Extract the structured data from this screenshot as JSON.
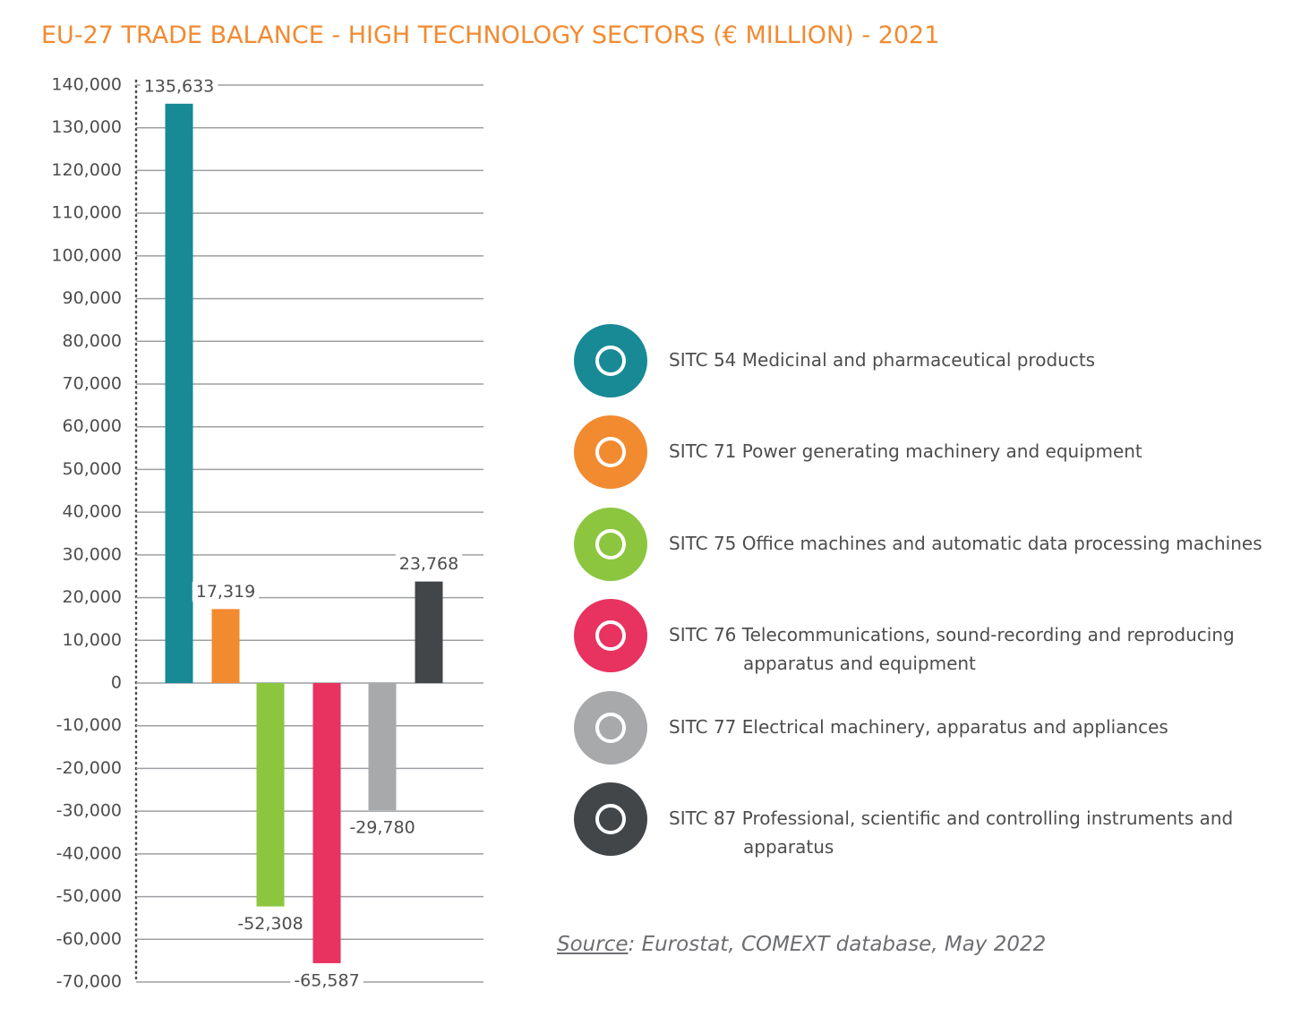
{
  "chart_data": {
    "type": "bar",
    "title": "EU-27 TRADE BALANCE - HIGH TECHNOLOGY SECTORS (€ MILLION) - 2021",
    "categories": [
      "SITC 54 Medicinal and pharmaceutical products",
      "SITC 71 Power generating machinery and equipment",
      "SITC 75 Office machines and automatic data processing machines",
      "SITC 76 Telecommunications, sound-recording and reproducing apparatus and equipment",
      "SITC 77 Electrical machinery, apparatus and appliances",
      "SITC 87 Professional, scientific and controlling instruments and apparatus"
    ],
    "values": [
      135633,
      17319,
      -52308,
      -65587,
      -29780,
      23768
    ],
    "value_labels": [
      "135,633",
      "17,319",
      "-52,308",
      "-65,587",
      "-29,780",
      "23,768"
    ],
    "colors": [
      "#178a96",
      "#f28a30",
      "#8cc63f",
      "#e8325f",
      "#a7a9ab",
      "#434649"
    ],
    "ylim": [
      -70000,
      140000
    ],
    "yticks": [
      {
        "value": -70000,
        "label": "-70,000"
      },
      {
        "value": -60000,
        "label": "-60,000"
      },
      {
        "value": -50000,
        "label": "-50,000"
      },
      {
        "value": -40000,
        "label": "-40,000"
      },
      {
        "value": -30000,
        "label": "-30,000"
      },
      {
        "value": -20000,
        "label": "-20,000"
      },
      {
        "value": -10000,
        "label": "-10,000"
      },
      0,
      {
        "value": 10000,
        "label": "10,000"
      },
      {
        "value": 20000,
        "label": "20,000"
      },
      {
        "value": 30000,
        "label": "30,000"
      },
      {
        "value": 40000,
        "label": "40,000"
      },
      {
        "value": 50000,
        "label": "50,000"
      },
      {
        "value": 60000,
        "label": "60,000"
      },
      {
        "value": 70000,
        "label": "70,000"
      },
      {
        "value": 80000,
        "label": "80,000"
      },
      {
        "value": 90000,
        "label": "90,000"
      },
      {
        "value": 100000,
        "label": "100,000"
      },
      {
        "value": 110000,
        "label": "110,000"
      },
      {
        "value": 120000,
        "label": "120,000"
      },
      {
        "value": 130000,
        "label": "130,000"
      },
      {
        "value": 140000,
        "label": "140,000"
      }
    ],
    "grid": true,
    "source_label": "Source",
    "source_text": ": Eurostat, COMEXT database, May 2022"
  }
}
